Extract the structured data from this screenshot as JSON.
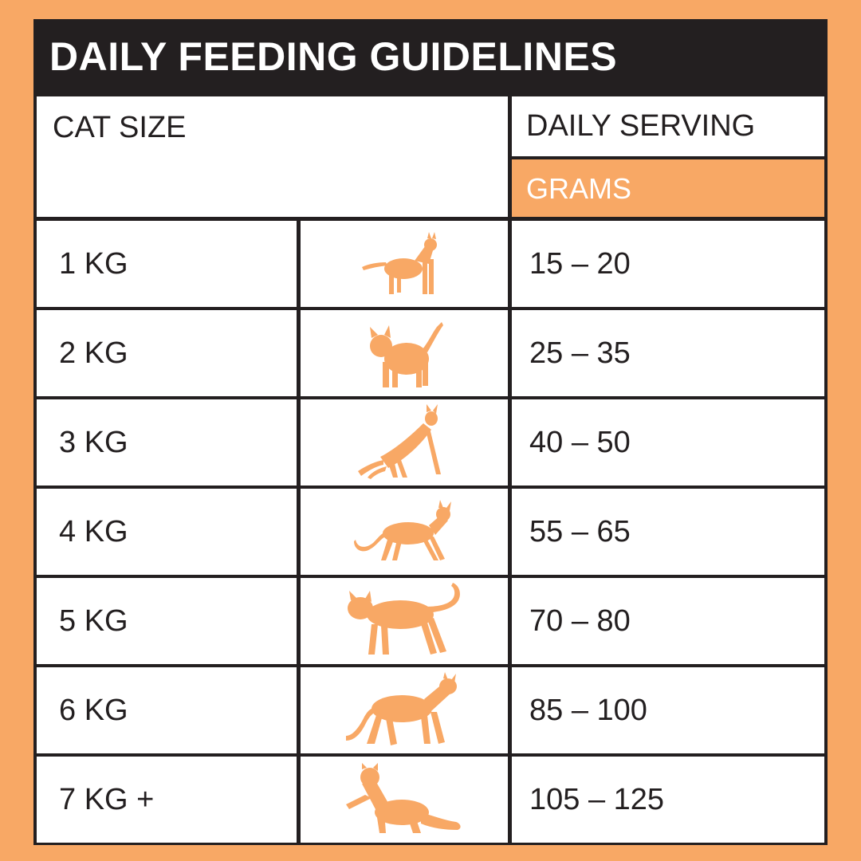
{
  "title": "DAILY FEEDING GUIDELINES",
  "headers": {
    "cat_size": "CAT SIZE",
    "daily_serving": "DAILY SERVING",
    "unit": "GRAMS"
  },
  "rows": [
    {
      "size": "1 KG",
      "grams": "15 – 20",
      "icon": "cat-sitting-icon"
    },
    {
      "size": "2 KG",
      "grams": "25 – 35",
      "icon": "cat-standing-tail-up-icon"
    },
    {
      "size": "3 KG",
      "grams": "40 – 50",
      "icon": "cat-stretching-icon"
    },
    {
      "size": "4 KG",
      "grams": "55 – 65",
      "icon": "cat-walking-icon"
    },
    {
      "size": "5 KG",
      "grams": "70 – 80",
      "icon": "cat-walking-large-icon"
    },
    {
      "size": "6 KG",
      "grams": "85 – 100",
      "icon": "cat-prowling-icon"
    },
    {
      "size": "7 KG +",
      "grams": "105 – 125",
      "icon": "cat-crouching-icon"
    }
  ],
  "colors": {
    "accent": "#F8A865",
    "dark": "#231F20",
    "background": "#FFFFFF"
  }
}
